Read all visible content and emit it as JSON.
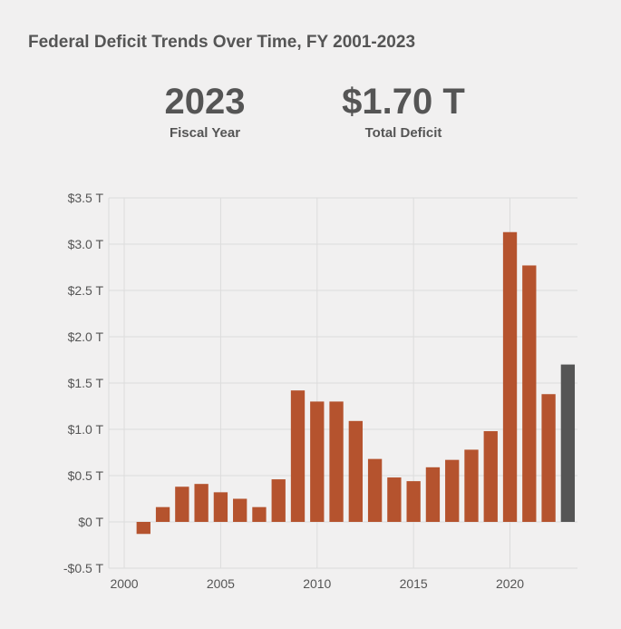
{
  "title": "Federal Deficit Trends Over Time, FY 2001-2023",
  "kpis": [
    {
      "value": "2023",
      "label": "Fiscal Year"
    },
    {
      "value": "$1.70 T",
      "label": "Total Deficit"
    }
  ],
  "colors": {
    "bar": "#b5532e",
    "highlight": "#555555",
    "grid": "#dcdcdc",
    "background": "#f1f0f0"
  },
  "chart_data": {
    "type": "bar",
    "x": [
      2001,
      2002,
      2003,
      2004,
      2005,
      2006,
      2007,
      2008,
      2009,
      2010,
      2011,
      2012,
      2013,
      2014,
      2015,
      2016,
      2017,
      2018,
      2019,
      2020,
      2021,
      2022,
      2023
    ],
    "values": [
      -0.13,
      0.16,
      0.38,
      0.41,
      0.32,
      0.25,
      0.16,
      0.46,
      1.42,
      1.3,
      1.3,
      1.09,
      0.68,
      0.48,
      0.44,
      0.59,
      0.67,
      0.78,
      0.98,
      3.13,
      2.77,
      1.38,
      1.7
    ],
    "highlight_x": 2023,
    "ylim": [
      -0.5,
      3.5
    ],
    "xlim": [
      1999.2,
      2023.5
    ],
    "yticks": [
      -0.5,
      0,
      0.5,
      1.0,
      1.5,
      2.0,
      2.5,
      3.0,
      3.5
    ],
    "ytick_labels": [
      "-$0.5 T",
      "$0 T",
      "$0.5 T",
      "$1.0 T",
      "$1.5 T",
      "$2.0 T",
      "$2.5 T",
      "$3.0 T",
      "$3.5 T"
    ],
    "xticks": [
      2000,
      2005,
      2010,
      2015,
      2020
    ],
    "xtick_labels": [
      "2000",
      "2005",
      "2010",
      "2015",
      "2020"
    ],
    "grid": true
  }
}
